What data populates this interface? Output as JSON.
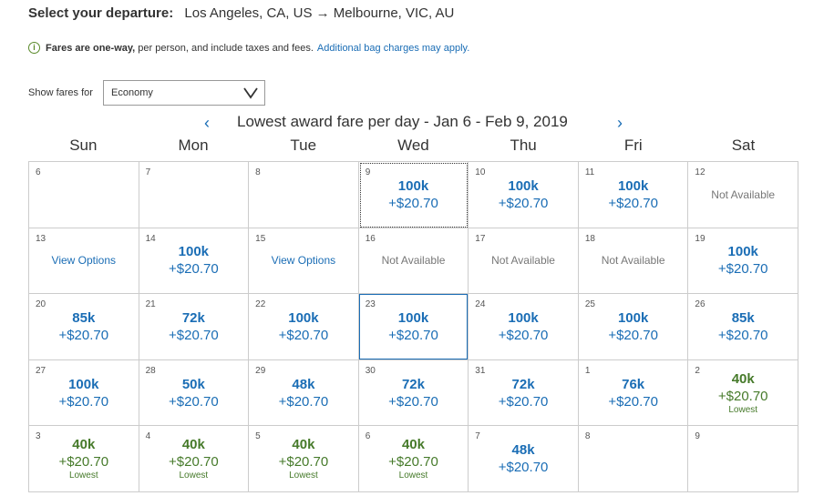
{
  "header": {
    "label": "Select your departure:",
    "route": "Los Angeles, CA, US → Melbourne, VIC, AU"
  },
  "info": {
    "icon": "info-icon",
    "bold": "Fares are one-way,",
    "text": " per person, and include taxes and fees.",
    "link": "Additional bag charges may apply."
  },
  "fares_filter": {
    "label": "Show fares for",
    "value": "Economy"
  },
  "calendar": {
    "prev": "‹",
    "next": "›",
    "title": "Lowest award fare per day - Jan 6 - Feb 9, 2019",
    "days": [
      "Sun",
      "Mon",
      "Tue",
      "Wed",
      "Thu",
      "Fri",
      "Sat"
    ],
    "cells": [
      {
        "date": "6"
      },
      {
        "date": "7"
      },
      {
        "date": "8"
      },
      {
        "date": "9",
        "miles": "100k",
        "tax": "+$20.70",
        "state": "dotted"
      },
      {
        "date": "10",
        "miles": "100k",
        "tax": "+$20.70"
      },
      {
        "date": "11",
        "miles": "100k",
        "tax": "+$20.70"
      },
      {
        "date": "12",
        "status": "Not Available"
      },
      {
        "date": "13",
        "action": "View Options"
      },
      {
        "date": "14",
        "miles": "100k",
        "tax": "+$20.70"
      },
      {
        "date": "15",
        "action": "View Options"
      },
      {
        "date": "16",
        "status": "Not Available"
      },
      {
        "date": "17",
        "status": "Not Available"
      },
      {
        "date": "18",
        "status": "Not Available"
      },
      {
        "date": "19",
        "miles": "100k",
        "tax": "+$20.70"
      },
      {
        "date": "20",
        "miles": "85k",
        "tax": "+$20.70"
      },
      {
        "date": "21",
        "miles": "72k",
        "tax": "+$20.70"
      },
      {
        "date": "22",
        "miles": "100k",
        "tax": "+$20.70"
      },
      {
        "date": "23",
        "miles": "100k",
        "tax": "+$20.70",
        "state": "solid"
      },
      {
        "date": "24",
        "miles": "100k",
        "tax": "+$20.70"
      },
      {
        "date": "25",
        "miles": "100k",
        "tax": "+$20.70"
      },
      {
        "date": "26",
        "miles": "85k",
        "tax": "+$20.70"
      },
      {
        "date": "27",
        "miles": "100k",
        "tax": "+$20.70"
      },
      {
        "date": "28",
        "miles": "50k",
        "tax": "+$20.70"
      },
      {
        "date": "29",
        "miles": "48k",
        "tax": "+$20.70"
      },
      {
        "date": "30",
        "miles": "72k",
        "tax": "+$20.70"
      },
      {
        "date": "31",
        "miles": "72k",
        "tax": "+$20.70"
      },
      {
        "date": "1",
        "miles": "76k",
        "tax": "+$20.70"
      },
      {
        "date": "2",
        "miles": "40k",
        "tax": "+$20.70",
        "lowest": "Lowest"
      },
      {
        "date": "3",
        "miles": "40k",
        "tax": "+$20.70",
        "lowest": "Lowest"
      },
      {
        "date": "4",
        "miles": "40k",
        "tax": "+$20.70",
        "lowest": "Lowest"
      },
      {
        "date": "5",
        "miles": "40k",
        "tax": "+$20.70",
        "lowest": "Lowest"
      },
      {
        "date": "6",
        "miles": "40k",
        "tax": "+$20.70",
        "lowest": "Lowest"
      },
      {
        "date": "7",
        "miles": "48k",
        "tax": "+$20.70"
      },
      {
        "date": "8"
      },
      {
        "date": "9"
      }
    ]
  },
  "colors": {
    "link": "#1a6db5",
    "lowest": "#467a2a",
    "border": "#cccccc"
  }
}
